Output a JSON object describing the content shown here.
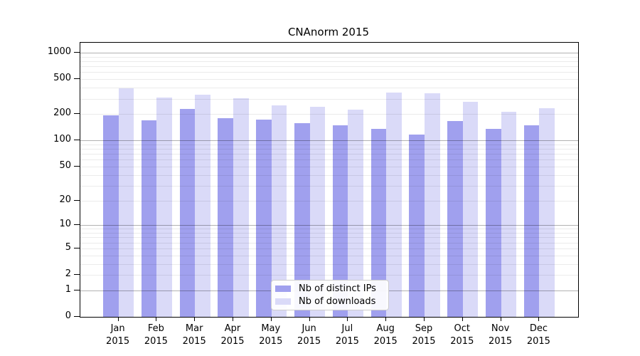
{
  "title": "CNAnorm 2015",
  "colors": {
    "distinct_ips": "#a0a0ee",
    "downloads": "#dadaf8",
    "grid_major": "rgba(0,0,0,0.30)",
    "grid_minor": "rgba(0,0,0,0.08)",
    "axis": "#000000"
  },
  "legend": {
    "items": [
      {
        "label": "Nb of distinct IPs",
        "color": "#a0a0ee"
      },
      {
        "label": "Nb of downloads",
        "color": "#dadaf8"
      }
    ]
  },
  "chart_data": {
    "type": "bar",
    "title": "CNAnorm 2015",
    "categories": [
      "Jan",
      "Feb",
      "Mar",
      "Apr",
      "May",
      "Jun",
      "Jul",
      "Aug",
      "Sep",
      "Oct",
      "Nov",
      "Dec"
    ],
    "year": "2015",
    "series": [
      {
        "name": "Nb of distinct IPs",
        "color": "#a0a0ee",
        "values": [
          195,
          170,
          228,
          180,
          172,
          156,
          150,
          136,
          116,
          166,
          136,
          149
        ]
      },
      {
        "name": "Nb of downloads",
        "color": "#dadaf8",
        "values": [
          390,
          310,
          330,
          305,
          252,
          243,
          225,
          355,
          348,
          275,
          212,
          235
        ]
      }
    ],
    "ylabel": "",
    "xlabel": "",
    "yscale": "log10(1+v)",
    "yticks": [
      1000,
      500,
      200,
      100,
      50,
      20,
      10,
      5,
      2,
      1,
      0
    ],
    "ylim": [
      0,
      1100
    ],
    "grid": "horizontal",
    "legend_position": "inside-bottom-center"
  }
}
